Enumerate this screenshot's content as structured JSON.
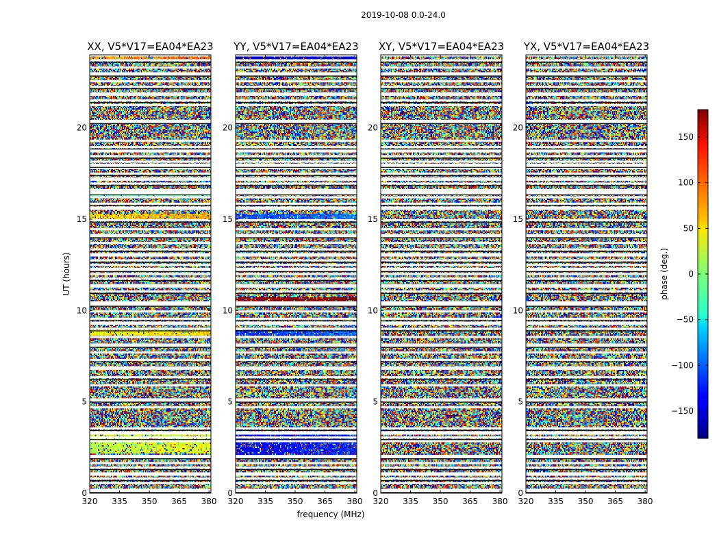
{
  "chart_data": {
    "type": "heatmap",
    "suptitle": "2019-10-08 0.0-24.0",
    "xlabel": "frequency (MHz)",
    "ylabel": "UT (hours)",
    "xlim": [
      320,
      381
    ],
    "ylim": [
      0,
      24
    ],
    "xticks": [
      320,
      335,
      350,
      365,
      380
    ],
    "yticks": [
      0,
      5,
      10,
      15,
      20
    ],
    "colorbar": {
      "label": "phase (deg.)",
      "colormap": "jet",
      "range": [
        -180,
        180
      ],
      "ticks": [
        -150,
        -100,
        -50,
        0,
        50,
        100,
        150
      ],
      "tick_labels": [
        "−150",
        "−100",
        "−50",
        "0",
        "50",
        "100",
        "150"
      ]
    },
    "panels": [
      {
        "title": "XX, V5*V17=EA04*EA23"
      },
      {
        "title": "YY, V5*V17=EA04*EA23"
      },
      {
        "title": "XY, V5*V17=EA04*EA23"
      },
      {
        "title": "YX, V5*V17=EA04*EA23"
      }
    ],
    "flagged_rows_hours": [
      0.15,
      0.55,
      0.8,
      1.05,
      1.4,
      1.65,
      2.0,
      2.85,
      3.05,
      3.3,
      3.55,
      4.7,
      5.1,
      5.9,
      6.35,
      6.85,
      7.3,
      7.7,
      8.1,
      8.55,
      9.0,
      9.3,
      9.55,
      9.95,
      10.35,
      10.45,
      11.05,
      11.35,
      11.75,
      12.0,
      12.25,
      12.5,
      12.75,
      13.05,
      13.35,
      13.7,
      14.1,
      14.45,
      14.95,
      15.6,
      15.85,
      16.2,
      16.45,
      16.6,
      16.95,
      17.2,
      17.5,
      17.8,
      17.95,
      18.15,
      18.45,
      18.75,
      18.95,
      19.3,
      20.35,
      21.25,
      21.5,
      21.85,
      22.25,
      22.55,
      22.95,
      23.3,
      23.7,
      24.0
    ],
    "coherent_bands_hours": [
      {
        "panel": 0,
        "y0": 2.2,
        "y1": 3.3,
        "phase": 20
      },
      {
        "panel": 0,
        "y0": 8.6,
        "y1": 8.9,
        "phase": 40
      },
      {
        "panel": 0,
        "y0": 15.0,
        "y1": 15.3,
        "phase": 60
      },
      {
        "panel": 0,
        "y0": 16.2,
        "y1": 16.4,
        "phase": -30
      },
      {
        "panel": 0,
        "y0": 23.7,
        "y1": 23.9,
        "phase": 80
      },
      {
        "panel": 1,
        "y0": 2.0,
        "y1": 3.3,
        "phase": -140
      },
      {
        "panel": 1,
        "y0": 8.6,
        "y1": 8.9,
        "phase": -120
      },
      {
        "panel": 1,
        "y0": 10.5,
        "y1": 10.7,
        "phase": 170
      },
      {
        "panel": 1,
        "y0": 15.0,
        "y1": 15.3,
        "phase": -110
      },
      {
        "panel": 1,
        "y0": 23.7,
        "y1": 23.9,
        "phase": -160
      }
    ]
  }
}
